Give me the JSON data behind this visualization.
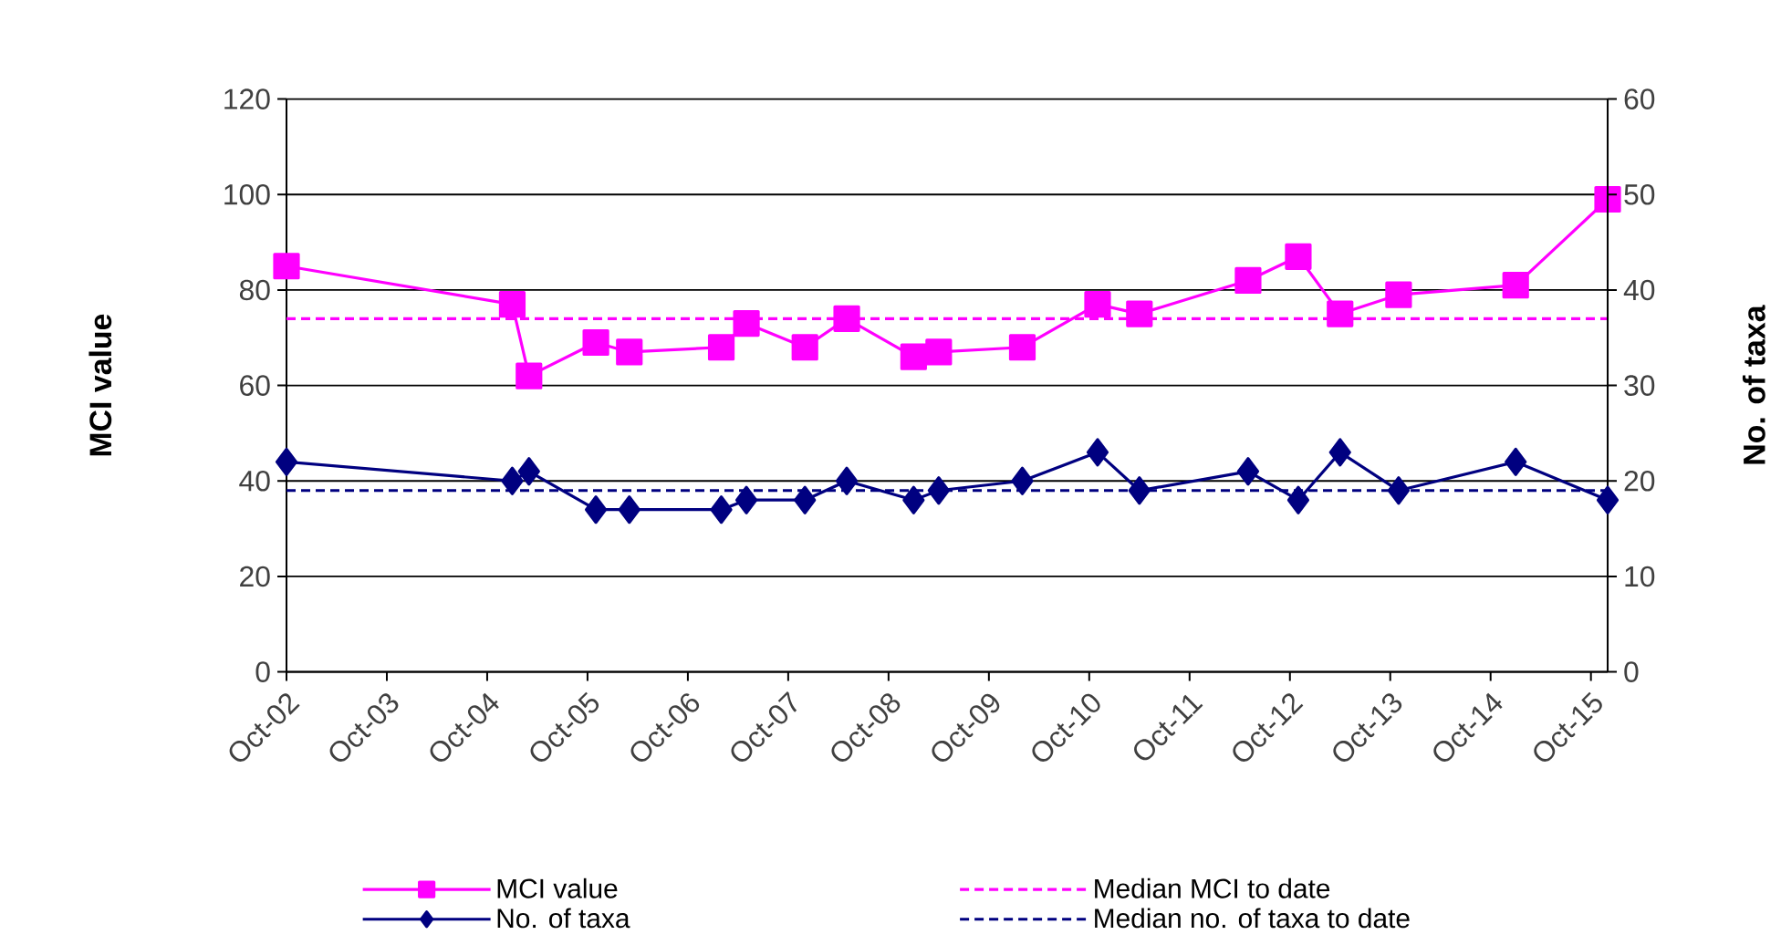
{
  "chart_data": {
    "type": "line",
    "ylabel": "MCI value",
    "y2label": "No. of taxa",
    "xlim": [
      "2002-10",
      "2015-12"
    ],
    "xticks": [
      {
        "value": "2002-10",
        "label": "Oct-02"
      },
      {
        "value": "2003-10",
        "label": "Oct-03"
      },
      {
        "value": "2004-10",
        "label": "Oct-04"
      },
      {
        "value": "2005-10",
        "label": "Oct-05"
      },
      {
        "value": "2006-10",
        "label": "Oct-06"
      },
      {
        "value": "2007-10",
        "label": "Oct-07"
      },
      {
        "value": "2008-10",
        "label": "Oct-08"
      },
      {
        "value": "2009-10",
        "label": "Oct-09"
      },
      {
        "value": "2010-10",
        "label": "Oct-10"
      },
      {
        "value": "2011-10",
        "label": "Oct-11"
      },
      {
        "value": "2012-10",
        "label": "Oct-12"
      },
      {
        "value": "2013-10",
        "label": "Oct-13"
      },
      {
        "value": "2014-10",
        "label": "Oct-14"
      },
      {
        "value": "2015-10",
        "label": "Oct-15"
      }
    ],
    "ylim": [
      0,
      120
    ],
    "yticks": [
      0,
      20,
      40,
      60,
      80,
      100,
      120
    ],
    "y2lim": [
      0,
      60
    ],
    "y2ticks": [
      0,
      10,
      20,
      30,
      40,
      50,
      60
    ],
    "grid": "y",
    "legend": "bottom",
    "series": [
      {
        "name": "MCI value",
        "color": "#ff00ff",
        "marker": "square",
        "line_style": "solid",
        "x": [
          "2002-10",
          "2005-01",
          "2005-03",
          "2005-11",
          "2006-03",
          "2007-02",
          "2007-05",
          "2007-12",
          "2008-05",
          "2009-01",
          "2009-04",
          "2010-02",
          "2010-11",
          "2011-04",
          "2012-05",
          "2012-11",
          "2013-04",
          "2013-11",
          "2015-01",
          "2015-12"
        ],
        "values": [
          85,
          77,
          62,
          69,
          67,
          68,
          73,
          68,
          74,
          66,
          67,
          68,
          77,
          75,
          82,
          87,
          75,
          79,
          81,
          99
        ]
      },
      {
        "name": "Median MCI to date",
        "color": "#ff00ff",
        "marker": "none",
        "line_style": "dashed",
        "x": [
          "2002-10",
          "2015-12"
        ],
        "values": [
          74,
          74
        ]
      },
      {
        "name": "No. of taxa",
        "color": "#000080",
        "marker": "diamond",
        "line_style": "solid",
        "axis": "y2",
        "x": [
          "2002-10",
          "2005-01",
          "2005-03",
          "2005-11",
          "2006-03",
          "2007-02",
          "2007-05",
          "2007-12",
          "2008-05",
          "2009-01",
          "2009-04",
          "2010-02",
          "2010-11",
          "2011-04",
          "2012-05",
          "2012-11",
          "2013-04",
          "2013-11",
          "2015-01",
          "2015-12"
        ],
        "values": [
          22,
          20,
          21,
          17,
          17,
          17,
          18,
          18,
          20,
          18,
          19,
          20,
          23,
          19,
          21,
          18,
          23,
          19,
          22,
          18
        ]
      },
      {
        "name": "Median no. of taxa to date",
        "color": "#000080",
        "marker": "none",
        "line_style": "dashed",
        "axis": "y2",
        "x": [
          "2002-10",
          "2015-12"
        ],
        "values": [
          19,
          19
        ]
      }
    ]
  }
}
